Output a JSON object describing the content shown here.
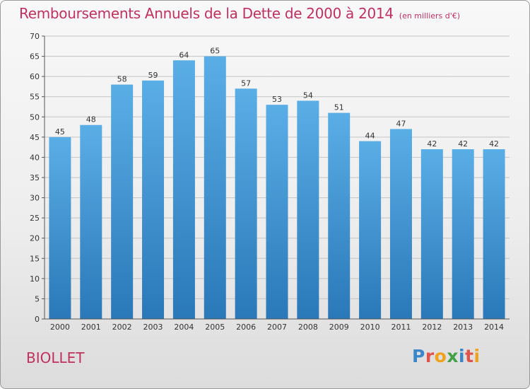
{
  "header": {
    "title": "Remboursements Annuels de la Dette de 2000 à 2014",
    "unit": "(en milliers d'€)"
  },
  "footer": {
    "commune": "BIOLLET",
    "logo": [
      "P",
      "r",
      "o",
      "x",
      "i",
      "t",
      "i"
    ]
  },
  "colors": {
    "title": "#c0315f",
    "bar_light": "#5aaee6",
    "bar_dark": "#2a78b8",
    "logo": [
      "#3a86c8",
      "#e0534a",
      "#f0a21c",
      "#43a047",
      "#3a86c8",
      "#e0534a",
      "#f0a21c"
    ]
  },
  "chart_data": {
    "type": "bar",
    "title": "Remboursements Annuels de la Dette de 2000 à 2014",
    "subtitle": "(en milliers d'€)",
    "categories": [
      "2000",
      "2001",
      "2002",
      "2003",
      "2004",
      "2005",
      "2006",
      "2007",
      "2008",
      "2009",
      "2010",
      "2011",
      "2012",
      "2013",
      "2014"
    ],
    "values": [
      45,
      48,
      58,
      59,
      64,
      65,
      57,
      53,
      54,
      51,
      44,
      47,
      42,
      42,
      42
    ],
    "ylim": [
      0,
      70
    ],
    "yticks": [
      0,
      5,
      10,
      15,
      20,
      25,
      30,
      35,
      40,
      45,
      50,
      55,
      60,
      65,
      70
    ],
    "grid": true,
    "data_labels": true
  }
}
